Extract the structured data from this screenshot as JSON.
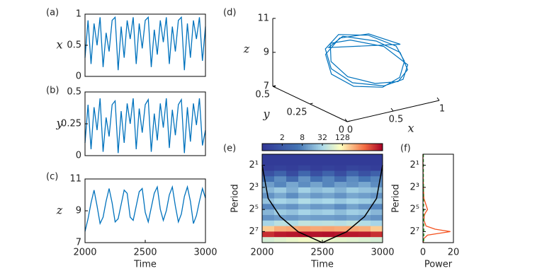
{
  "chart_data": [
    {
      "type": "line",
      "label": "(a)",
      "ylabel": "x",
      "xlim": [
        2000,
        3000
      ],
      "ylim": [
        0,
        1
      ],
      "yticks": [
        0,
        0.5,
        1
      ],
      "x": [
        2000,
        2025,
        2050,
        2075,
        2100,
        2125,
        2150,
        2175,
        2200,
        2225,
        2250,
        2275,
        2300,
        2325,
        2350,
        2375,
        2400,
        2425,
        2450,
        2475,
        2500,
        2525,
        2550,
        2575,
        2600,
        2625,
        2650,
        2675,
        2700,
        2725,
        2750,
        2775,
        2800,
        2825,
        2850,
        2875,
        2900,
        2925,
        2950,
        2975,
        3000
      ],
      "series": [
        {
          "color": "#0072bd",
          "values": [
            0.3,
            0.9,
            0.2,
            0.85,
            0.5,
            0.95,
            0.15,
            0.7,
            0.4,
            0.9,
            0.95,
            0.1,
            0.8,
            0.3,
            0.9,
            0.6,
            0.95,
            0.2,
            0.85,
            0.45,
            0.9,
            0.95,
            0.15,
            0.75,
            0.35,
            0.9,
            0.55,
            0.95,
            0.2,
            0.8,
            0.4,
            0.9,
            0.95,
            0.1,
            0.85,
            0.3,
            0.9,
            0.6,
            0.95,
            0.25,
            0.8
          ]
        }
      ]
    },
    {
      "type": "line",
      "label": "(b)",
      "ylabel": "y",
      "xlim": [
        2000,
        3000
      ],
      "ylim": [
        0,
        0.5
      ],
      "yticks": [
        0,
        0.25,
        0.5
      ],
      "x": [
        2000,
        2025,
        2050,
        2075,
        2100,
        2125,
        2150,
        2175,
        2200,
        2225,
        2250,
        2275,
        2300,
        2325,
        2350,
        2375,
        2400,
        2425,
        2450,
        2475,
        2500,
        2525,
        2550,
        2575,
        2600,
        2625,
        2650,
        2675,
        2700,
        2725,
        2750,
        2775,
        2800,
        2825,
        2850,
        2875,
        2900,
        2925,
        2950,
        2975,
        3000
      ],
      "series": [
        {
          "color": "#0072bd",
          "values": [
            0.1,
            0.4,
            0.05,
            0.38,
            0.2,
            0.45,
            0.03,
            0.3,
            0.15,
            0.4,
            0.43,
            0.02,
            0.35,
            0.1,
            0.41,
            0.25,
            0.45,
            0.05,
            0.37,
            0.18,
            0.4,
            0.44,
            0.03,
            0.33,
            0.12,
            0.41,
            0.22,
            0.45,
            0.06,
            0.36,
            0.16,
            0.4,
            0.44,
            0.02,
            0.38,
            0.11,
            0.41,
            0.24,
            0.45,
            0.08,
            0.2
          ]
        }
      ]
    },
    {
      "type": "line",
      "label": "(c)",
      "ylabel": "z",
      "xlabel": "Time",
      "xlim": [
        2000,
        3000
      ],
      "xticks": [
        2000,
        2500,
        3000
      ],
      "ylim": [
        7,
        11
      ],
      "yticks": [
        7,
        9,
        11
      ],
      "x": [
        2000,
        2025,
        2050,
        2075,
        2100,
        2125,
        2150,
        2175,
        2200,
        2225,
        2250,
        2275,
        2300,
        2325,
        2350,
        2375,
        2400,
        2425,
        2450,
        2475,
        2500,
        2525,
        2550,
        2575,
        2600,
        2625,
        2650,
        2675,
        2700,
        2725,
        2750,
        2775,
        2800,
        2825,
        2850,
        2875,
        2900,
        2925,
        2950,
        2975,
        3000
      ],
      "series": [
        {
          "color": "#0072bd",
          "values": [
            7.7,
            8.5,
            9.5,
            10.3,
            9.3,
            8.2,
            8.6,
            9.6,
            10.4,
            9.5,
            8.3,
            8.5,
            9.4,
            10.3,
            10.1,
            8.6,
            8.4,
            9.3,
            10.2,
            10.4,
            8.9,
            8.3,
            9.2,
            10.1,
            10.5,
            9.1,
            8.4,
            9.0,
            10.0,
            10.5,
            9.3,
            8.3,
            8.8,
            9.9,
            10.5,
            9.6,
            8.2,
            8.7,
            9.6,
            10.4,
            9.8
          ]
        }
      ]
    },
    {
      "type": "line3d",
      "label": "(d)",
      "xlabel": "x",
      "ylabel": "y",
      "zlabel": "z",
      "xlim": [
        0,
        1
      ],
      "xticks": [
        0,
        0.5,
        1
      ],
      "ylim": [
        0,
        0.5
      ],
      "yticks": [
        0,
        0.25,
        0.5
      ],
      "zlim": [
        7,
        11
      ],
      "zticks": [
        7,
        9,
        11
      ],
      "color": "#0072bd",
      "x": [
        0.9,
        0.75,
        0.5,
        0.25,
        0.12,
        0.2,
        0.45,
        0.7,
        0.88,
        0.92,
        0.78,
        0.52,
        0.28,
        0.15,
        0.22,
        0.48,
        0.72,
        0.9,
        0.85,
        0.6,
        0.35,
        0.18,
        0.2,
        0.4,
        0.65,
        0.85,
        0.93,
        0.8,
        0.55,
        0.3
      ],
      "y": [
        0.2,
        0.32,
        0.36,
        0.3,
        0.18,
        0.08,
        0.04,
        0.08,
        0.16,
        0.24,
        0.34,
        0.38,
        0.32,
        0.2,
        0.1,
        0.05,
        0.07,
        0.15,
        0.28,
        0.35,
        0.33,
        0.22,
        0.12,
        0.06,
        0.06,
        0.12,
        0.22,
        0.3,
        0.37,
        0.31
      ],
      "z": [
        9.6,
        9.9,
        9.8,
        9.4,
        8.9,
        8.5,
        8.3,
        8.4,
        8.8,
        9.3,
        9.7,
        9.9,
        9.6,
        9.1,
        8.6,
        8.3,
        8.3,
        8.6,
        9.2,
        9.6,
        9.8,
        9.4,
        8.9,
        8.5,
        8.3,
        8.5,
        9.0,
        9.5,
        9.8,
        9.7
      ]
    },
    {
      "type": "heatmap",
      "label": "(e)",
      "xlabel": "Time",
      "ylabel": "Period",
      "xlim": [
        2000,
        3000
      ],
      "xticks": [
        2000,
        2500,
        3000
      ],
      "ylim": [
        1,
        256
      ],
      "ylog": true,
      "yreverse": true,
      "yticks": [
        {
          "value": 2,
          "label": "2¹"
        },
        {
          "value": 8,
          "label": "2³"
        },
        {
          "value": 32,
          "label": "2⁵"
        },
        {
          "value": 128,
          "label": "2⁷"
        }
      ],
      "clim": [
        0.5,
        2048
      ],
      "clog": true,
      "cticks": [
        2,
        8,
        32,
        128
      ],
      "x_edges": [
        2000,
        2100,
        2200,
        2300,
        2400,
        2500,
        2600,
        2700,
        2800,
        2900,
        3000
      ],
      "y_edges": [
        1,
        1.41,
        2,
        2.83,
        4,
        5.66,
        8,
        11.3,
        16,
        22.6,
        32,
        45.3,
        64,
        90.5,
        128,
        181,
        256
      ],
      "z": [
        [
          0.6,
          0.6,
          0.6,
          0.6,
          0.6,
          0.6,
          0.6,
          0.6,
          0.6,
          0.6
        ],
        [
          0.6,
          0.6,
          0.6,
          0.6,
          0.6,
          0.6,
          0.6,
          0.6,
          0.6,
          0.6
        ],
        [
          0.7,
          0.8,
          0.7,
          0.9,
          0.7,
          0.8,
          0.7,
          0.9,
          0.8,
          0.7
        ],
        [
          1.5,
          3,
          1.2,
          3.5,
          1.4,
          3,
          1.3,
          3.2,
          1.5,
          2.8
        ],
        [
          5,
          9,
          4,
          10,
          5,
          8,
          4,
          9,
          6,
          8
        ],
        [
          12,
          8,
          14,
          9,
          13,
          8,
          12,
          10,
          14,
          9
        ],
        [
          18,
          25,
          16,
          28,
          20,
          24,
          17,
          26,
          22,
          20
        ],
        [
          10,
          14,
          9,
          15,
          11,
          13,
          10,
          14,
          12,
          10
        ],
        [
          22,
          30,
          25,
          35,
          28,
          32,
          24,
          30,
          26,
          22
        ],
        [
          8,
          12,
          10,
          14,
          11,
          12,
          9,
          13,
          10,
          8
        ],
        [
          18,
          26,
          22,
          30,
          25,
          28,
          20,
          27,
          24,
          18
        ],
        [
          10,
          12,
          11,
          13,
          12,
          12,
          11,
          13,
          12,
          10
        ],
        [
          30,
          40,
          35,
          45,
          40,
          42,
          38,
          44,
          36,
          30
        ],
        [
          200,
          280,
          300,
          320,
          300,
          310,
          290,
          300,
          280,
          200
        ],
        [
          1200,
          1500,
          1600,
          1700,
          1650,
          1700,
          1600,
          1550,
          1500,
          1200
        ],
        [
          60,
          70,
          80,
          90,
          85,
          80,
          75,
          70,
          65,
          60
        ]
      ],
      "coi": {
        "x": [
          2000,
          2050,
          2150,
          2300,
          2500,
          2700,
          2850,
          2950,
          3000
        ],
        "y": [
          2,
          16,
          50,
          130,
          256,
          130,
          50,
          16,
          2
        ]
      }
    },
    {
      "type": "line",
      "orientation": "horizontal",
      "label": "(f)",
      "xlabel": "Power",
      "ylabel": "Period",
      "xlim": [
        0,
        20
      ],
      "xticks": [
        0,
        20
      ],
      "ylim": [
        1,
        256
      ],
      "ylog": true,
      "yreverse": true,
      "yticks": [
        {
          "value": 2,
          "label": "2¹"
        },
        {
          "value": 8,
          "label": "2³"
        },
        {
          "value": 32,
          "label": "2⁵"
        },
        {
          "value": 128,
          "label": "2⁷"
        }
      ],
      "y": [
        1,
        2,
        4,
        8,
        16,
        24,
        32,
        40,
        48,
        64,
        90,
        110,
        128,
        140,
        160,
        200,
        256
      ],
      "series": [
        {
          "color": "#f4511e",
          "values": [
            0,
            0,
            0.1,
            0.3,
            0.6,
            2,
            3,
            1.5,
            0.8,
            0.7,
            2,
            8,
            18,
            12,
            3,
            0.5,
            0.2
          ]
        },
        {
          "color": "#2ca02c",
          "dashed": true,
          "values": [
            0.3,
            0.3,
            0.3,
            0.35,
            0.4,
            0.45,
            0.5,
            0.5,
            0.5,
            0.55,
            0.6,
            0.6,
            0.6,
            0.6,
            0.6,
            0.55,
            0.5
          ]
        }
      ]
    }
  ]
}
